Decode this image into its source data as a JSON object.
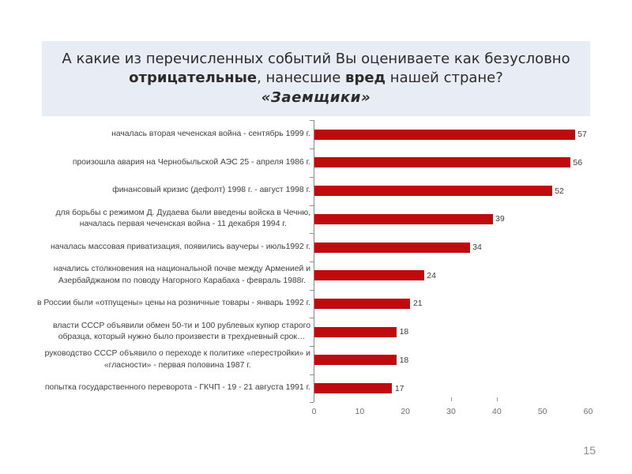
{
  "slide": {
    "page_number": "15",
    "background_color": "#ffffff"
  },
  "title": {
    "line1": "А какие из перечисленных событий Вы оцениваете как безусловно",
    "line2_bold1": "отрицательные",
    "line2_text1": ", нанесшие ",
    "line2_bold2": "вред",
    "line2_text2": " нашей стране?",
    "line3": "«Заемщики»",
    "box_color": "#e8ecf4",
    "text_color": "#2b2b2b"
  },
  "chart_data": {
    "type": "bar",
    "orientation": "horizontal",
    "title": "",
    "xlabel": "",
    "ylabel": "",
    "xlim": [
      0,
      60
    ],
    "x_ticks": [
      0,
      10,
      20,
      30,
      40,
      50,
      60
    ],
    "x_tick_marks_visible_at": [
      30,
      40
    ],
    "grid": false,
    "legend": null,
    "bar_color": "#c00b0e",
    "categories": [
      "началась вторая чеченская война - сентябрь 1999 г.",
      "произошла авария на Чернобыльской АЭС 25 - апреля 1986 г.",
      "финансовый кризис (дефолт) 1998 г. - август 1998 г.",
      "для борьбы с режимом Д. Дудаева были введены войска  в Чечню,\nначалась первая чеченская война - 11 декабря 1994 г.",
      "началась массовая приватизация, появились ваучеры - июль1992 г.",
      "начались столкновения на национальной почве  между Арменией и\nАзербайджаном по поводу Нагорного Карабаха - февраль 1988г.",
      "в России были «отпущены» цены на розничные товары - январь 1992 г.",
      "власти СССР объявили обмен 50-ти и 100 рублевых купюр старого\nобразца, который нужно было произвести  в трехдневный срок…",
      "руководство СССР объявило о переходе  к политике «перестройки» и\n«гласности» - первая половина 1987 г.",
      "попытка государственного переворота - ГКЧП - 19 - 21 августа 1991 г."
    ],
    "values": [
      57,
      56,
      52,
      39,
      34,
      24,
      21,
      18,
      18,
      17
    ]
  }
}
